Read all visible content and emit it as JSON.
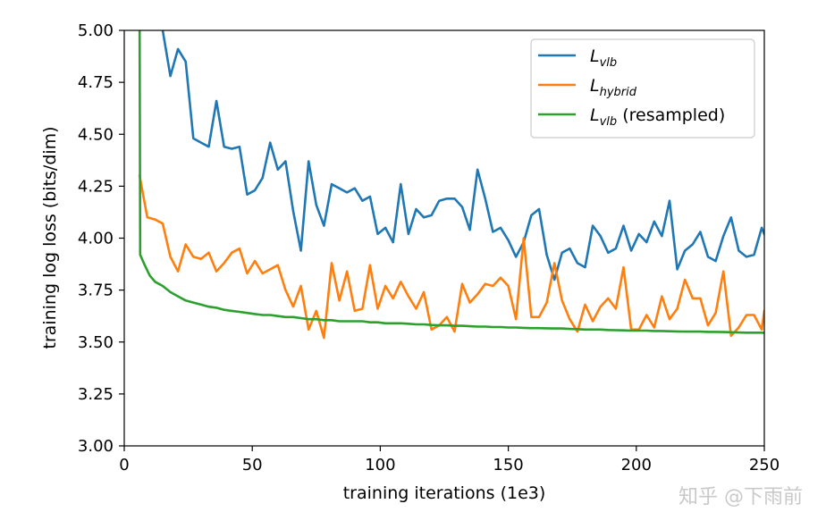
{
  "chart_data": {
    "type": "line",
    "title": "",
    "xlabel": "training iterations (1e3)",
    "ylabel": "training log loss (bits/dim)",
    "xlim": [
      0,
      250
    ],
    "ylim": [
      3.0,
      5.0
    ],
    "xticks": [
      "0",
      "50",
      "100",
      "150",
      "200",
      "250"
    ],
    "yticks": [
      "3.00",
      "3.25",
      "3.50",
      "3.75",
      "4.00",
      "4.25",
      "4.50",
      "4.75",
      "5.00"
    ],
    "legend_position": "top-right",
    "series": [
      {
        "name": "L_vlb",
        "legend_main": "L",
        "legend_sub": "vlb",
        "legend_suffix": "",
        "color": "#1f77b4",
        "points": [
          [
            15,
            5.0
          ],
          [
            18,
            4.78
          ],
          [
            21,
            4.91
          ],
          [
            24,
            4.85
          ],
          [
            27,
            4.48
          ],
          [
            30,
            4.46
          ],
          [
            33,
            4.44
          ],
          [
            36,
            4.66
          ],
          [
            39,
            4.44
          ],
          [
            42,
            4.43
          ],
          [
            45,
            4.44
          ],
          [
            48,
            4.21
          ],
          [
            51,
            4.23
          ],
          [
            54,
            4.29
          ],
          [
            57,
            4.46
          ],
          [
            60,
            4.33
          ],
          [
            63,
            4.37
          ],
          [
            66,
            4.13
          ],
          [
            69,
            3.94
          ],
          [
            72,
            4.37
          ],
          [
            75,
            4.16
          ],
          [
            78,
            4.06
          ],
          [
            81,
            4.26
          ],
          [
            84,
            4.24
          ],
          [
            87,
            4.22
          ],
          [
            90,
            4.24
          ],
          [
            93,
            4.18
          ],
          [
            96,
            4.2
          ],
          [
            99,
            4.02
          ],
          [
            102,
            4.05
          ],
          [
            105,
            3.98
          ],
          [
            108,
            4.26
          ],
          [
            111,
            4.02
          ],
          [
            114,
            4.14
          ],
          [
            117,
            4.1
          ],
          [
            120,
            4.11
          ],
          [
            123,
            4.18
          ],
          [
            126,
            4.19
          ],
          [
            129,
            4.19
          ],
          [
            132,
            4.15
          ],
          [
            135,
            4.04
          ],
          [
            138,
            4.33
          ],
          [
            141,
            4.19
          ],
          [
            144,
            4.03
          ],
          [
            147,
            4.05
          ],
          [
            150,
            3.99
          ],
          [
            153,
            3.91
          ],
          [
            156,
            3.98
          ],
          [
            159,
            4.11
          ],
          [
            162,
            4.14
          ],
          [
            165,
            3.92
          ],
          [
            168,
            3.8
          ],
          [
            171,
            3.93
          ],
          [
            174,
            3.95
          ],
          [
            177,
            3.88
          ],
          [
            180,
            3.86
          ],
          [
            183,
            4.06
          ],
          [
            186,
            4.01
          ],
          [
            189,
            3.93
          ],
          [
            192,
            3.95
          ],
          [
            195,
            4.06
          ],
          [
            198,
            3.94
          ],
          [
            201,
            4.02
          ],
          [
            204,
            3.98
          ],
          [
            207,
            4.08
          ],
          [
            210,
            4.01
          ],
          [
            213,
            4.18
          ],
          [
            216,
            3.85
          ],
          [
            219,
            3.94
          ],
          [
            222,
            3.97
          ],
          [
            225,
            4.03
          ],
          [
            228,
            3.91
          ],
          [
            231,
            3.89
          ],
          [
            234,
            4.01
          ],
          [
            237,
            4.1
          ],
          [
            240,
            3.94
          ],
          [
            243,
            3.91
          ],
          [
            246,
            3.92
          ],
          [
            249,
            4.05
          ],
          [
            250,
            4.02
          ]
        ]
      },
      {
        "name": "L_hybrid",
        "legend_main": "L",
        "legend_sub": "hybrid",
        "legend_suffix": "",
        "color": "#ff7f0e",
        "points": [
          [
            6,
            4.3
          ],
          [
            9,
            4.1
          ],
          [
            12,
            4.09
          ],
          [
            15,
            4.07
          ],
          [
            18,
            3.91
          ],
          [
            21,
            3.84
          ],
          [
            24,
            3.97
          ],
          [
            27,
            3.91
          ],
          [
            30,
            3.9
          ],
          [
            33,
            3.93
          ],
          [
            36,
            3.84
          ],
          [
            39,
            3.88
          ],
          [
            42,
            3.93
          ],
          [
            45,
            3.95
          ],
          [
            48,
            3.83
          ],
          [
            51,
            3.89
          ],
          [
            54,
            3.83
          ],
          [
            57,
            3.85
          ],
          [
            60,
            3.87
          ],
          [
            63,
            3.75
          ],
          [
            66,
            3.67
          ],
          [
            69,
            3.77
          ],
          [
            72,
            3.56
          ],
          [
            75,
            3.65
          ],
          [
            78,
            3.52
          ],
          [
            81,
            3.88
          ],
          [
            84,
            3.7
          ],
          [
            87,
            3.84
          ],
          [
            90,
            3.65
          ],
          [
            93,
            3.66
          ],
          [
            96,
            3.87
          ],
          [
            99,
            3.66
          ],
          [
            102,
            3.77
          ],
          [
            105,
            3.71
          ],
          [
            108,
            3.79
          ],
          [
            111,
            3.72
          ],
          [
            114,
            3.66
          ],
          [
            117,
            3.74
          ],
          [
            120,
            3.56
          ],
          [
            123,
            3.58
          ],
          [
            126,
            3.62
          ],
          [
            129,
            3.55
          ],
          [
            132,
            3.78
          ],
          [
            135,
            3.69
          ],
          [
            138,
            3.73
          ],
          [
            141,
            3.78
          ],
          [
            144,
            3.77
          ],
          [
            147,
            3.81
          ],
          [
            150,
            3.77
          ],
          [
            153,
            3.61
          ],
          [
            156,
            4.0
          ],
          [
            159,
            3.62
          ],
          [
            162,
            3.62
          ],
          [
            165,
            3.69
          ],
          [
            168,
            3.88
          ],
          [
            171,
            3.7
          ],
          [
            174,
            3.61
          ],
          [
            177,
            3.55
          ],
          [
            180,
            3.68
          ],
          [
            183,
            3.6
          ],
          [
            186,
            3.67
          ],
          [
            189,
            3.71
          ],
          [
            192,
            3.66
          ],
          [
            195,
            3.86
          ],
          [
            198,
            3.56
          ],
          [
            201,
            3.56
          ],
          [
            204,
            3.63
          ],
          [
            207,
            3.57
          ],
          [
            210,
            3.72
          ],
          [
            213,
            3.61
          ],
          [
            216,
            3.66
          ],
          [
            219,
            3.8
          ],
          [
            222,
            3.71
          ],
          [
            225,
            3.71
          ],
          [
            228,
            3.58
          ],
          [
            231,
            3.64
          ],
          [
            234,
            3.84
          ],
          [
            237,
            3.53
          ],
          [
            240,
            3.57
          ],
          [
            243,
            3.63
          ],
          [
            246,
            3.63
          ],
          [
            249,
            3.56
          ],
          [
            250,
            3.65
          ]
        ]
      },
      {
        "name": "L_vlb (resampled)",
        "legend_main": "L",
        "legend_sub": "vlb",
        "legend_suffix": " (resampled)",
        "color": "#2ca02c",
        "points": [
          [
            6,
            5.0
          ],
          [
            6.2,
            3.92
          ],
          [
            8,
            3.87
          ],
          [
            10,
            3.82
          ],
          [
            12,
            3.79
          ],
          [
            15,
            3.77
          ],
          [
            18,
            3.74
          ],
          [
            21,
            3.72
          ],
          [
            24,
            3.7
          ],
          [
            27,
            3.69
          ],
          [
            30,
            3.68
          ],
          [
            33,
            3.67
          ],
          [
            36,
            3.665
          ],
          [
            39,
            3.655
          ],
          [
            42,
            3.65
          ],
          [
            45,
            3.645
          ],
          [
            48,
            3.64
          ],
          [
            51,
            3.635
          ],
          [
            54,
            3.63
          ],
          [
            57,
            3.63
          ],
          [
            60,
            3.625
          ],
          [
            63,
            3.62
          ],
          [
            66,
            3.62
          ],
          [
            69,
            3.615
          ],
          [
            72,
            3.61
          ],
          [
            75,
            3.61
          ],
          [
            78,
            3.605
          ],
          [
            81,
            3.605
          ],
          [
            84,
            3.6
          ],
          [
            87,
            3.6
          ],
          [
            90,
            3.6
          ],
          [
            93,
            3.6
          ],
          [
            96,
            3.595
          ],
          [
            99,
            3.595
          ],
          [
            102,
            3.59
          ],
          [
            105,
            3.59
          ],
          [
            108,
            3.59
          ],
          [
            111,
            3.588
          ],
          [
            114,
            3.585
          ],
          [
            117,
            3.585
          ],
          [
            120,
            3.582
          ],
          [
            123,
            3.58
          ],
          [
            126,
            3.58
          ],
          [
            129,
            3.578
          ],
          [
            132,
            3.578
          ],
          [
            135,
            3.576
          ],
          [
            138,
            3.574
          ],
          [
            141,
            3.574
          ],
          [
            144,
            3.572
          ],
          [
            147,
            3.572
          ],
          [
            150,
            3.57
          ],
          [
            153,
            3.57
          ],
          [
            156,
            3.568
          ],
          [
            159,
            3.567
          ],
          [
            162,
            3.567
          ],
          [
            165,
            3.566
          ],
          [
            168,
            3.565
          ],
          [
            171,
            3.565
          ],
          [
            174,
            3.563
          ],
          [
            177,
            3.562
          ],
          [
            180,
            3.56
          ],
          [
            183,
            3.56
          ],
          [
            186,
            3.56
          ],
          [
            189,
            3.558
          ],
          [
            192,
            3.557
          ],
          [
            195,
            3.556
          ],
          [
            198,
            3.555
          ],
          [
            201,
            3.555
          ],
          [
            204,
            3.555
          ],
          [
            207,
            3.553
          ],
          [
            210,
            3.553
          ],
          [
            213,
            3.552
          ],
          [
            216,
            3.551
          ],
          [
            219,
            3.55
          ],
          [
            222,
            3.55
          ],
          [
            225,
            3.55
          ],
          [
            228,
            3.549
          ],
          [
            231,
            3.549
          ],
          [
            234,
            3.548
          ],
          [
            237,
            3.547
          ],
          [
            240,
            3.546
          ],
          [
            243,
            3.545
          ],
          [
            246,
            3.545
          ],
          [
            249,
            3.545
          ],
          [
            250,
            3.544
          ]
        ]
      }
    ]
  },
  "watermark": {
    "text": "知乎 @下雨前"
  }
}
